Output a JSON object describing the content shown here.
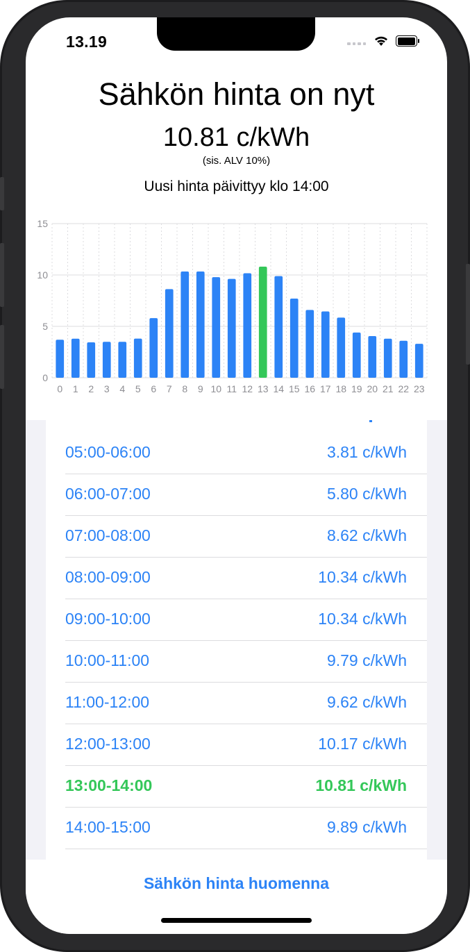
{
  "status": {
    "time": "13.19"
  },
  "header": {
    "title": "Sähkön hinta on nyt",
    "price": "10.81 c/kWh",
    "vat_note": "(sis. ALV 10%)",
    "update_note": "Uusi hinta päivittyy klo 14:00"
  },
  "chart_data": {
    "type": "bar",
    "categories": [
      "0",
      "1",
      "2",
      "3",
      "4",
      "5",
      "6",
      "7",
      "8",
      "9",
      "10",
      "11",
      "12",
      "13",
      "14",
      "15",
      "16",
      "17",
      "18",
      "19",
      "20",
      "21",
      "22",
      "23"
    ],
    "values": [
      3.7,
      3.8,
      3.45,
      3.5,
      3.5,
      3.81,
      5.8,
      8.62,
      10.34,
      10.34,
      9.79,
      9.62,
      10.17,
      10.81,
      9.89,
      7.7,
      6.6,
      6.45,
      5.85,
      4.4,
      4.05,
      3.8,
      3.6,
      3.3
    ],
    "highlight_index": 13,
    "ylim": [
      0,
      15
    ],
    "yticks": [
      "0",
      "5",
      "10",
      "15"
    ],
    "colors": {
      "bar": "#2c83f6",
      "highlight": "#34c759",
      "grid": "#dcdcdf",
      "tick": "#8e8e93"
    },
    "grid": true
  },
  "price_list": {
    "rows": [
      {
        "time": "05:00-06:00",
        "price": "3.81 c/kWh",
        "current": false
      },
      {
        "time": "06:00-07:00",
        "price": "5.80 c/kWh",
        "current": false
      },
      {
        "time": "07:00-08:00",
        "price": "8.62 c/kWh",
        "current": false
      },
      {
        "time": "08:00-09:00",
        "price": "10.34 c/kWh",
        "current": false
      },
      {
        "time": "09:00-10:00",
        "price": "10.34 c/kWh",
        "current": false
      },
      {
        "time": "10:00-11:00",
        "price": "9.79 c/kWh",
        "current": false
      },
      {
        "time": "11:00-12:00",
        "price": "9.62 c/kWh",
        "current": false
      },
      {
        "time": "12:00-13:00",
        "price": "10.17 c/kWh",
        "current": false
      },
      {
        "time": "13:00-14:00",
        "price": "10.81 c/kWh",
        "current": true
      },
      {
        "time": "14:00-15:00",
        "price": "9.89 c/kWh",
        "current": false
      }
    ]
  },
  "footer": {
    "tomorrow_button": "Sähkön hinta huomenna"
  },
  "colors": {
    "accent": "#2c83f6",
    "current": "#34c759"
  }
}
